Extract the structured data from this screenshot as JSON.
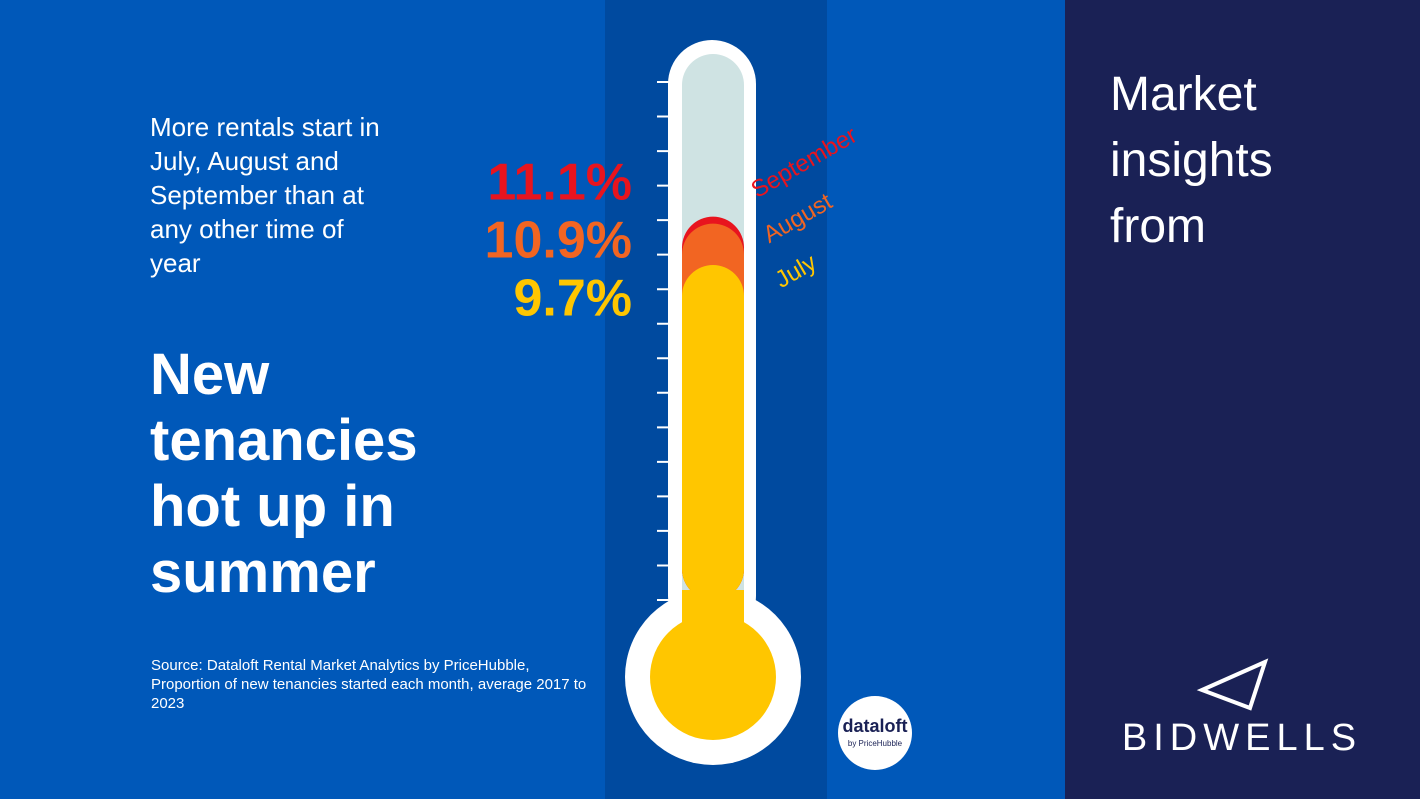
{
  "chart_data": {
    "type": "thermometer",
    "subtitle": "More rentals start in July, August and September than at any other time of year",
    "title": "New tenancies hot up in summer",
    "source": "Source: Dataloft Rental Market Analytics by PriceHubble, Proportion of new tenancies started each month, average 2017 to 2023",
    "categories": [
      "July",
      "August",
      "September"
    ],
    "values": [
      9.7,
      10.9,
      11.1
    ],
    "value_labels": [
      "9.7%",
      "10.9%",
      "11.1%"
    ],
    "colors": [
      "#ffc600",
      "#f26522",
      "#e8141e"
    ],
    "ylim": [
      0,
      15
    ],
    "yticks": [
      0,
      1,
      2,
      3,
      4,
      5,
      6,
      7,
      8,
      9,
      10,
      11,
      12,
      13,
      14,
      15
    ]
  },
  "branding": {
    "panel_text": "Market insights from",
    "company": "BIDWELLS",
    "logo": "dataloft",
    "logo_sub": "by PriceHubble"
  }
}
